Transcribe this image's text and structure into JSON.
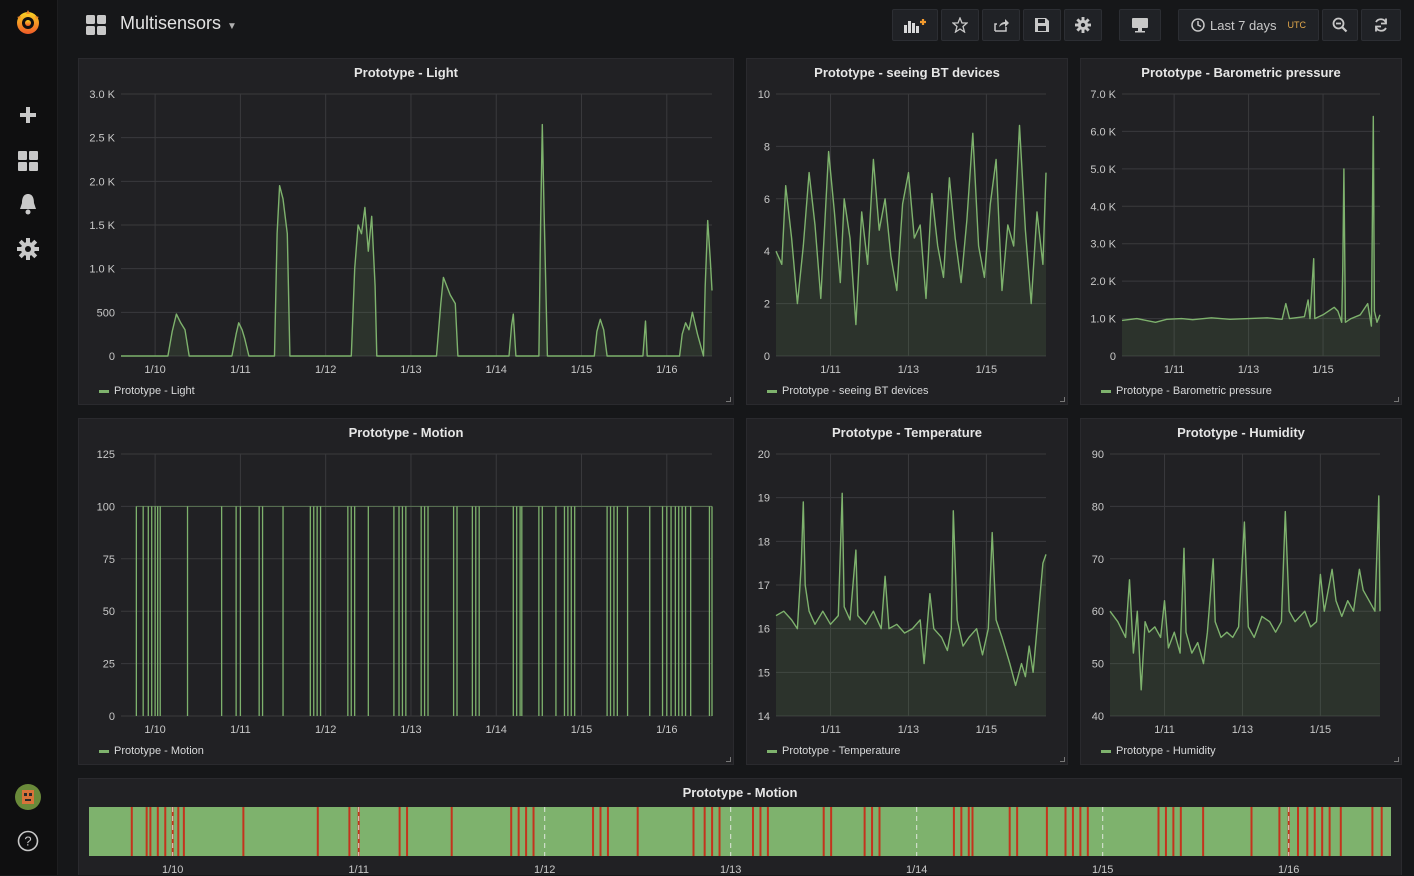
{
  "app": {
    "dashboard_title": "Multisensors",
    "time_range": "Last 7 days",
    "timezone": "UTC"
  },
  "icons": {
    "logo": "grafana-logo-icon",
    "create": "plus-icon",
    "dashboards": "grid-icon",
    "alerting": "bell-icon",
    "config": "gear-icon",
    "help": "question-icon",
    "add_panel": "add-panel-icon",
    "star": "star-icon",
    "share": "share-icon",
    "save": "save-icon",
    "settings": "gear-icon",
    "tv": "monitor-icon",
    "clock": "clock-icon",
    "zoom_out": "zoom-out-icon",
    "refresh": "refresh-icon"
  },
  "colors": {
    "series": "#7eb26d",
    "discrete_on": "#c4331d",
    "discrete_off": "#7eb26d",
    "background": "#161719",
    "panel": "#212124"
  },
  "panels": {
    "light": {
      "title": "Prototype - Light",
      "legend": "Prototype - Light"
    },
    "bt": {
      "title": "Prototype - seeing BT devices",
      "legend": "Prototype - seeing BT devices"
    },
    "pressure": {
      "title": "Prototype - Barometric pressure",
      "legend": "Prototype - Barometric pressure"
    },
    "motion": {
      "title": "Prototype - Motion",
      "legend": "Prototype - Motion"
    },
    "temperature": {
      "title": "Prototype - Temperature",
      "legend": "Prototype - Temperature"
    },
    "humidity": {
      "title": "Prototype - Humidity",
      "legend": "Prototype - Humidity"
    },
    "motion_discrete": {
      "title": "Prototype - Motion"
    }
  },
  "chart_data": [
    {
      "id": "light",
      "type": "area",
      "title": "Prototype - Light",
      "series_name": "Prototype - Light",
      "x_ticks": [
        "1/10",
        "1/11",
        "1/12",
        "1/13",
        "1/14",
        "1/15",
        "1/16"
      ],
      "y_ticks": [
        "0",
        "500",
        "1.0 K",
        "1.5 K",
        "2.0 K",
        "2.5 K",
        "3.0 K"
      ],
      "ylim": [
        0,
        3000
      ],
      "x_start_day": 9.6,
      "x_end_day": 16.53,
      "points": [
        [
          9.6,
          0
        ],
        [
          10.15,
          0
        ],
        [
          10.2,
          280
        ],
        [
          10.25,
          480
        ],
        [
          10.3,
          380
        ],
        [
          10.35,
          300
        ],
        [
          10.4,
          0
        ],
        [
          10.9,
          0
        ],
        [
          10.95,
          250
        ],
        [
          10.98,
          380
        ],
        [
          11.02,
          300
        ],
        [
          11.05,
          200
        ],
        [
          11.1,
          0
        ],
        [
          11.4,
          0
        ],
        [
          11.43,
          1400
        ],
        [
          11.46,
          1950
        ],
        [
          11.5,
          1800
        ],
        [
          11.55,
          1400
        ],
        [
          11.58,
          0
        ],
        [
          12.3,
          0
        ],
        [
          12.34,
          1000
        ],
        [
          12.38,
          1500
        ],
        [
          12.42,
          1400
        ],
        [
          12.46,
          1700
        ],
        [
          12.5,
          1200
        ],
        [
          12.54,
          1600
        ],
        [
          12.58,
          800
        ],
        [
          12.6,
          0
        ],
        [
          13.3,
          0
        ],
        [
          13.35,
          600
        ],
        [
          13.38,
          900
        ],
        [
          13.42,
          800
        ],
        [
          13.46,
          700
        ],
        [
          13.52,
          600
        ],
        [
          13.55,
          0
        ],
        [
          14.15,
          0
        ],
        [
          14.18,
          350
        ],
        [
          14.2,
          480
        ],
        [
          14.23,
          0
        ],
        [
          14.5,
          0
        ],
        [
          14.52,
          1500
        ],
        [
          14.54,
          2650
        ],
        [
          14.56,
          1700
        ],
        [
          14.6,
          0
        ],
        [
          15.15,
          0
        ],
        [
          15.18,
          280
        ],
        [
          15.22,
          420
        ],
        [
          15.26,
          300
        ],
        [
          15.3,
          0
        ],
        [
          15.72,
          0
        ],
        [
          15.75,
          400
        ],
        [
          15.77,
          0
        ],
        [
          16.15,
          0
        ],
        [
          16.18,
          250
        ],
        [
          16.22,
          380
        ],
        [
          16.26,
          300
        ],
        [
          16.3,
          500
        ],
        [
          16.36,
          250
        ],
        [
          16.43,
          0
        ],
        [
          16.45,
          800
        ],
        [
          16.48,
          1550
        ],
        [
          16.51,
          1100
        ],
        [
          16.53,
          750
        ]
      ]
    },
    {
      "id": "bt",
      "type": "area",
      "title": "Prototype - seeing BT devices",
      "series_name": "Prototype - seeing BT devices",
      "x_ticks": [
        "1/11",
        "1/13",
        "1/15"
      ],
      "y_ticks": [
        "0",
        "2",
        "4",
        "6",
        "8",
        "10"
      ],
      "ylim": [
        0,
        10
      ],
      "x_start_day": 9.6,
      "x_end_day": 16.53,
      "points": [
        [
          9.6,
          4.0
        ],
        [
          9.75,
          3.5
        ],
        [
          9.85,
          6.5
        ],
        [
          10.0,
          4.5
        ],
        [
          10.15,
          2.0
        ],
        [
          10.3,
          4.2
        ],
        [
          10.45,
          7.0
        ],
        [
          10.6,
          5.0
        ],
        [
          10.75,
          2.2
        ],
        [
          10.95,
          7.8
        ],
        [
          11.1,
          5.5
        ],
        [
          11.25,
          2.8
        ],
        [
          11.35,
          6.0
        ],
        [
          11.5,
          4.5
        ],
        [
          11.65,
          1.2
        ],
        [
          11.8,
          5.5
        ],
        [
          11.95,
          3.5
        ],
        [
          12.1,
          7.5
        ],
        [
          12.25,
          4.8
        ],
        [
          12.4,
          6.0
        ],
        [
          12.55,
          3.8
        ],
        [
          12.7,
          2.5
        ],
        [
          12.85,
          5.8
        ],
        [
          13.0,
          7.0
        ],
        [
          13.15,
          4.5
        ],
        [
          13.3,
          5.0
        ],
        [
          13.45,
          2.2
        ],
        [
          13.6,
          6.2
        ],
        [
          13.75,
          4.2
        ],
        [
          13.9,
          3.0
        ],
        [
          14.05,
          6.8
        ],
        [
          14.2,
          4.5
        ],
        [
          14.35,
          2.8
        ],
        [
          14.5,
          5.2
        ],
        [
          14.65,
          8.5
        ],
        [
          14.8,
          4.2
        ],
        [
          14.95,
          3.0
        ],
        [
          15.1,
          5.8
        ],
        [
          15.25,
          7.5
        ],
        [
          15.4,
          2.5
        ],
        [
          15.55,
          5.0
        ],
        [
          15.7,
          4.2
        ],
        [
          15.85,
          8.8
        ],
        [
          16.0,
          4.8
        ],
        [
          16.15,
          2.0
        ],
        [
          16.3,
          5.5
        ],
        [
          16.45,
          3.5
        ],
        [
          16.53,
          7.0
        ]
      ]
    },
    {
      "id": "pressure",
      "type": "area",
      "title": "Prototype - Barometric pressure",
      "series_name": "Prototype - Barometric pressure",
      "x_ticks": [
        "1/11",
        "1/13",
        "1/15"
      ],
      "y_ticks": [
        "0",
        "1.0 K",
        "2.0 K",
        "3.0 K",
        "4.0 K",
        "5.0 K",
        "6.0 K",
        "7.0 K"
      ],
      "ylim": [
        0,
        7000
      ],
      "x_start_day": 9.6,
      "x_end_day": 16.53,
      "points": [
        [
          9.6,
          950
        ],
        [
          10.0,
          1000
        ],
        [
          10.5,
          900
        ],
        [
          10.8,
          980
        ],
        [
          11.2,
          1000
        ],
        [
          11.5,
          970
        ],
        [
          12.0,
          1020
        ],
        [
          12.5,
          980
        ],
        [
          13.0,
          1000
        ],
        [
          13.5,
          1020
        ],
        [
          13.9,
          980
        ],
        [
          14.0,
          1400
        ],
        [
          14.1,
          1000
        ],
        [
          14.5,
          1050
        ],
        [
          14.6,
          1500
        ],
        [
          14.65,
          1000
        ],
        [
          14.75,
          2600
        ],
        [
          14.78,
          1000
        ],
        [
          15.0,
          1100
        ],
        [
          15.3,
          1300
        ],
        [
          15.4,
          1200
        ],
        [
          15.5,
          900
        ],
        [
          15.53,
          2400
        ],
        [
          15.56,
          5000
        ],
        [
          15.6,
          900
        ],
        [
          15.75,
          1000
        ],
        [
          16.0,
          1100
        ],
        [
          16.2,
          1400
        ],
        [
          16.3,
          800
        ],
        [
          16.35,
          6400
        ],
        [
          16.38,
          1200
        ],
        [
          16.45,
          900
        ],
        [
          16.53,
          1100
        ]
      ]
    },
    {
      "id": "motion",
      "type": "bar",
      "title": "Prototype - Motion",
      "series_name": "Prototype - Motion",
      "x_ticks": [
        "1/10",
        "1/11",
        "1/12",
        "1/13",
        "1/14",
        "1/15",
        "1/16"
      ],
      "y_ticks": [
        "0",
        "25",
        "50",
        "75",
        "100",
        "125"
      ],
      "ylim": [
        0,
        125
      ],
      "x_start_day": 9.6,
      "x_end_day": 16.53,
      "events_day": [
        9.78,
        9.86,
        9.92,
        9.96,
        10.0,
        10.03,
        10.06,
        10.38,
        10.78,
        10.95,
        11.0,
        11.22,
        11.26,
        11.5,
        11.82,
        11.86,
        11.9,
        11.94,
        12.26,
        12.3,
        12.34,
        12.5,
        12.8,
        12.86,
        12.9,
        12.94,
        13.12,
        13.16,
        13.2,
        13.5,
        13.54,
        13.72,
        13.76,
        13.8,
        14.2,
        14.24,
        14.28,
        14.3,
        14.5,
        14.54,
        14.7,
        14.8,
        14.84,
        14.88,
        14.92,
        15.3,
        15.34,
        15.38,
        15.42,
        15.54,
        15.8,
        15.95,
        16.0,
        16.05,
        16.1,
        16.14,
        16.18,
        16.22,
        16.28,
        16.5,
        16.53
      ]
    },
    {
      "id": "temperature",
      "type": "area",
      "title": "Prototype - Temperature",
      "series_name": "Prototype - Temperature",
      "x_ticks": [
        "1/11",
        "1/13",
        "1/15"
      ],
      "y_ticks": [
        "14",
        "15",
        "16",
        "17",
        "18",
        "19",
        "20"
      ],
      "ylim": [
        14,
        20
      ],
      "x_start_day": 9.6,
      "x_end_day": 16.53,
      "points": [
        [
          9.6,
          16.3
        ],
        [
          9.8,
          16.4
        ],
        [
          10.0,
          16.2
        ],
        [
          10.15,
          16.0
        ],
        [
          10.25,
          17.5
        ],
        [
          10.3,
          18.9
        ],
        [
          10.35,
          17.0
        ],
        [
          10.45,
          16.4
        ],
        [
          10.6,
          16.1
        ],
        [
          10.8,
          16.4
        ],
        [
          11.0,
          16.1
        ],
        [
          11.2,
          16.3
        ],
        [
          11.3,
          19.1
        ],
        [
          11.35,
          16.5
        ],
        [
          11.5,
          16.2
        ],
        [
          11.65,
          17.8
        ],
        [
          11.7,
          16.3
        ],
        [
          11.9,
          16.1
        ],
        [
          12.1,
          16.4
        ],
        [
          12.3,
          16.0
        ],
        [
          12.4,
          17.2
        ],
        [
          12.5,
          16.0
        ],
        [
          12.7,
          16.1
        ],
        [
          12.9,
          15.9
        ],
        [
          13.1,
          16.0
        ],
        [
          13.3,
          16.2
        ],
        [
          13.4,
          15.2
        ],
        [
          13.55,
          16.8
        ],
        [
          13.65,
          16.0
        ],
        [
          13.85,
          15.8
        ],
        [
          14.0,
          15.5
        ],
        [
          14.1,
          16.0
        ],
        [
          14.15,
          18.7
        ],
        [
          14.25,
          16.2
        ],
        [
          14.4,
          15.6
        ],
        [
          14.55,
          15.8
        ],
        [
          14.75,
          16.0
        ],
        [
          14.9,
          15.4
        ],
        [
          15.05,
          16.0
        ],
        [
          15.15,
          18.2
        ],
        [
          15.25,
          16.2
        ],
        [
          15.4,
          15.8
        ],
        [
          15.6,
          15.2
        ],
        [
          15.75,
          14.7
        ],
        [
          15.9,
          15.2
        ],
        [
          16.0,
          14.9
        ],
        [
          16.1,
          15.6
        ],
        [
          16.2,
          15.0
        ],
        [
          16.35,
          16.5
        ],
        [
          16.45,
          17.5
        ],
        [
          16.53,
          17.7
        ]
      ]
    },
    {
      "id": "humidity",
      "type": "area",
      "title": "Prototype - Humidity",
      "series_name": "Prototype - Humidity",
      "x_ticks": [
        "1/11",
        "1/13",
        "1/15"
      ],
      "y_ticks": [
        "40",
        "50",
        "60",
        "70",
        "80",
        "90"
      ],
      "ylim": [
        40,
        90
      ],
      "x_start_day": 9.6,
      "x_end_day": 16.53,
      "points": [
        [
          9.6,
          60
        ],
        [
          9.8,
          58
        ],
        [
          10.0,
          55
        ],
        [
          10.1,
          66
        ],
        [
          10.2,
          52
        ],
        [
          10.3,
          60
        ],
        [
          10.4,
          45
        ],
        [
          10.5,
          58
        ],
        [
          10.6,
          56
        ],
        [
          10.75,
          57
        ],
        [
          10.9,
          55
        ],
        [
          11.0,
          62
        ],
        [
          11.1,
          53
        ],
        [
          11.25,
          56
        ],
        [
          11.4,
          52
        ],
        [
          11.5,
          72
        ],
        [
          11.55,
          56
        ],
        [
          11.7,
          52
        ],
        [
          11.85,
          54
        ],
        [
          12.0,
          50
        ],
        [
          12.1,
          56
        ],
        [
          12.25,
          70
        ],
        [
          12.3,
          58
        ],
        [
          12.45,
          55
        ],
        [
          12.6,
          56
        ],
        [
          12.75,
          55
        ],
        [
          12.9,
          57
        ],
        [
          13.05,
          77
        ],
        [
          13.15,
          57
        ],
        [
          13.3,
          55
        ],
        [
          13.5,
          59
        ],
        [
          13.7,
          58
        ],
        [
          13.85,
          56
        ],
        [
          14.0,
          58
        ],
        [
          14.1,
          79
        ],
        [
          14.2,
          60
        ],
        [
          14.35,
          58
        ],
        [
          14.6,
          60
        ],
        [
          14.75,
          57
        ],
        [
          14.9,
          58
        ],
        [
          15.0,
          67
        ],
        [
          15.1,
          60
        ],
        [
          15.3,
          68
        ],
        [
          15.4,
          62
        ],
        [
          15.55,
          59
        ],
        [
          15.7,
          62
        ],
        [
          15.85,
          60
        ],
        [
          16.0,
          68
        ],
        [
          16.1,
          64
        ],
        [
          16.25,
          62
        ],
        [
          16.4,
          60
        ],
        [
          16.5,
          82
        ],
        [
          16.53,
          60
        ]
      ]
    },
    {
      "id": "motion_discrete",
      "type": "timeline",
      "title": "Prototype - Motion",
      "x_ticks": [
        "1/10",
        "1/11",
        "1/12",
        "1/13",
        "1/14",
        "1/15",
        "1/16"
      ],
      "x_start_day": 9.55,
      "x_end_day": 16.55,
      "events_day": [
        9.78,
        9.86,
        9.88,
        9.92,
        9.96,
        10.0,
        10.03,
        10.06,
        10.38,
        10.78,
        10.95,
        11.0,
        11.22,
        11.26,
        11.5,
        11.82,
        11.86,
        11.9,
        11.94,
        12.26,
        12.3,
        12.34,
        12.5,
        12.8,
        12.86,
        12.9,
        12.94,
        13.12,
        13.16,
        13.2,
        13.5,
        13.54,
        13.72,
        13.76,
        13.8,
        14.2,
        14.24,
        14.28,
        14.3,
        14.5,
        14.54,
        14.7,
        14.8,
        14.84,
        14.88,
        14.92,
        15.3,
        15.34,
        15.38,
        15.42,
        15.54,
        15.8,
        15.95,
        16.0,
        16.05,
        16.1,
        16.14,
        16.18,
        16.22,
        16.28,
        16.45,
        16.5
      ]
    }
  ]
}
